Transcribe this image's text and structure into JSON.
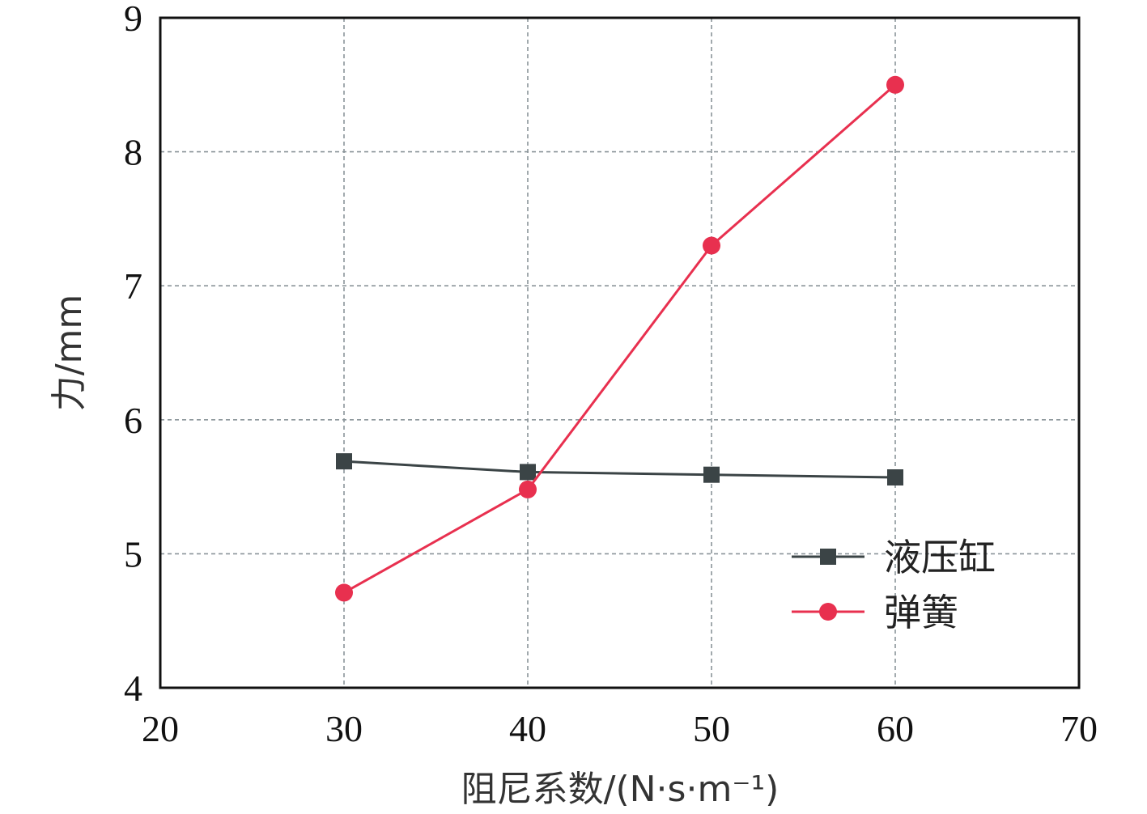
{
  "chart_data": {
    "type": "line",
    "title": "",
    "xlabel": "阻尼系数/(N·s·m⁻¹)",
    "ylabel": "力/mm",
    "xlim": [
      20,
      70
    ],
    "ylim": [
      4,
      9
    ],
    "x_ticks": [
      20,
      30,
      40,
      50,
      60,
      70
    ],
    "y_ticks": [
      4,
      5,
      6,
      7,
      8,
      9
    ],
    "grid": true,
    "legend_position": "bottom-right",
    "series": [
      {
        "name": "液压缸",
        "color": "#3b4446",
        "marker": "square",
        "x": [
          30,
          40,
          50,
          60
        ],
        "y": [
          5.69,
          5.61,
          5.59,
          5.57
        ]
      },
      {
        "name": "弹簧",
        "color": "#e8304f",
        "marker": "circle",
        "x": [
          30,
          40,
          50,
          60
        ],
        "y": [
          4.71,
          5.48,
          7.3,
          8.5
        ]
      }
    ]
  }
}
